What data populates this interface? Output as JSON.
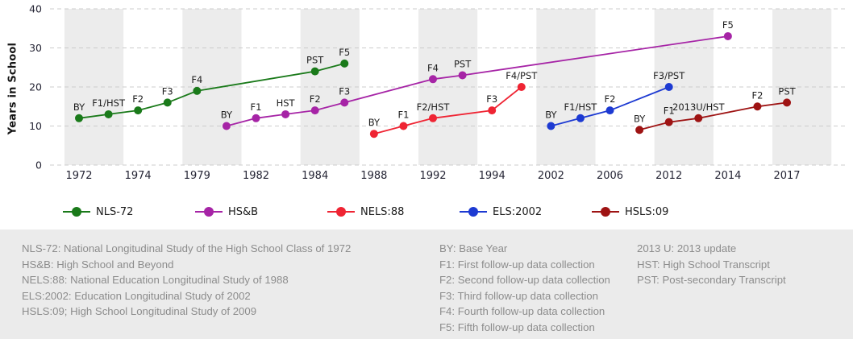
{
  "chart_data": {
    "type": "line",
    "ylabel": "Years in School",
    "ylim": [
      0,
      40
    ],
    "yticks": [
      0,
      10,
      20,
      30,
      40
    ],
    "grid": "horizontal-dashed",
    "background": "alternating vertical stripes",
    "legend_position": "bottom",
    "x_tick_labels": [
      "1972",
      "1974",
      "1979",
      "1982",
      "1984",
      "1988",
      "1992",
      "1994",
      "2002",
      "2006",
      "2012",
      "2014",
      "2017"
    ],
    "series": [
      {
        "name": "NLS-72",
        "color": "#1a7a1a",
        "points": [
          {
            "slot": 0,
            "value": 12,
            "label": "BY"
          },
          {
            "slot": 0.5,
            "value": 13,
            "label": "F1/HST"
          },
          {
            "slot": 1,
            "value": 14,
            "label": "F2"
          },
          {
            "slot": 1.5,
            "value": 16,
            "label": "F3"
          },
          {
            "slot": 2,
            "value": 19,
            "label": "F4"
          },
          {
            "slot": 4,
            "value": 24,
            "label": "PST"
          },
          {
            "slot": 4.5,
            "value": 26,
            "label": "F5"
          }
        ]
      },
      {
        "name": "HS&B",
        "color": "#a624a6",
        "points": [
          {
            "slot": 2.5,
            "value": 10,
            "label": "BY"
          },
          {
            "slot": 3,
            "value": 12,
            "label": "F1"
          },
          {
            "slot": 3.5,
            "value": 13,
            "label": "HST"
          },
          {
            "slot": 4,
            "value": 14,
            "label": "F2"
          },
          {
            "slot": 4.5,
            "value": 16,
            "label": "F3"
          },
          {
            "slot": 6,
            "value": 22,
            "label": "F4"
          },
          {
            "slot": 6.5,
            "value": 23,
            "label": "PST"
          },
          {
            "slot": 11,
            "value": 33,
            "label": "F5"
          }
        ]
      },
      {
        "name": "NELS:88",
        "color": "#ef2433",
        "points": [
          {
            "slot": 5,
            "value": 8,
            "label": "BY"
          },
          {
            "slot": 5.5,
            "value": 10,
            "label": "F1"
          },
          {
            "slot": 6,
            "value": 12,
            "label": "F2/HST"
          },
          {
            "slot": 7,
            "value": 14,
            "label": "F3"
          },
          {
            "slot": 7.5,
            "value": 20,
            "label": "F4/PST"
          }
        ]
      },
      {
        "name": "ELS:2002",
        "color": "#1d3ad2",
        "points": [
          {
            "slot": 8,
            "value": 10,
            "label": "BY"
          },
          {
            "slot": 8.5,
            "value": 12,
            "label": "F1/HST"
          },
          {
            "slot": 9,
            "value": 14,
            "label": "F2"
          },
          {
            "slot": 10,
            "value": 20,
            "label": "F3/PST"
          }
        ]
      },
      {
        "name": "HSLS:09",
        "color": "#9e1313",
        "points": [
          {
            "slot": 9.5,
            "value": 9,
            "label": "BY"
          },
          {
            "slot": 10,
            "value": 11,
            "label": "F1"
          },
          {
            "slot": 10.5,
            "value": 12,
            "label": "2013U/HST"
          },
          {
            "slot": 11.5,
            "value": 15,
            "label": "F2"
          },
          {
            "slot": 12,
            "value": 16,
            "label": "PST"
          }
        ]
      }
    ]
  },
  "footer": {
    "columns": [
      {
        "lines": [
          "NLS-72: National Longitudinal Study of the High School Class of 1972",
          "HS&B: High School and Beyond",
          "NELS:88: National Education Longitudinal Study of 1988",
          "ELS:2002: Education Longitudinal Study of 2002",
          "HSLS:09; High School Longitudinal Study of 2009"
        ]
      },
      {
        "lines": [
          "BY: Base Year",
          "F1: First follow-up data collection",
          "F2: Second follow-up data collection",
          "F3: Third follow-up data collection",
          "F4: Fourth follow-up data collection",
          "F5: Fifth follow-up data collection"
        ]
      },
      {
        "lines": [
          "2013 U: 2013 update",
          "HST: High School Transcript",
          "PST: Post-secondary Transcript"
        ]
      }
    ]
  }
}
